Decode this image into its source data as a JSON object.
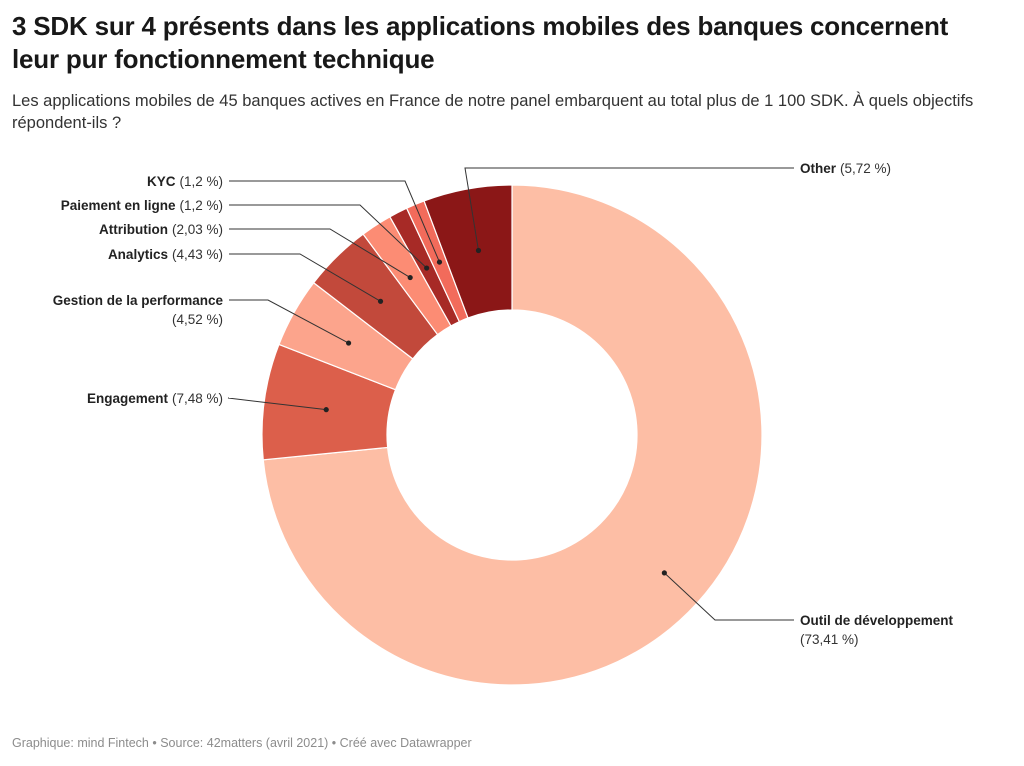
{
  "header": {
    "title": "3 SDK sur 4 présents dans les applications mobiles des banques concernent leur pur fonctionnement technique",
    "subtitle": "Les applications mobiles de 45 banques actives en France de notre panel embarquent au total plus de 1 100 SDK. À quels objectifs répondent-ils ?"
  },
  "footer": {
    "credit": "Graphique: mind Fintech • Source: 42matters (avril 2021) • Créé avec Datawrapper"
  },
  "chart_data": {
    "type": "pie",
    "variant": "donut",
    "unit": "%",
    "slices": [
      {
        "name": "Outil de développement",
        "value": 73.41,
        "value_label": "(73,41 %)",
        "color": "#fdbea5"
      },
      {
        "name": "Engagement",
        "value": 7.48,
        "value_label": "(7,48 %)",
        "color": "#dc5f4b"
      },
      {
        "name": "Gestion de la performance",
        "value": 4.52,
        "value_label": "(4,52 %)",
        "color": "#fca48c"
      },
      {
        "name": "Analytics",
        "value": 4.43,
        "value_label": "(4,43 %)",
        "color": "#c2493b"
      },
      {
        "name": "Attribution",
        "value": 2.03,
        "value_label": "(2,03 %)",
        "color": "#fc8c74"
      },
      {
        "name": "Paiement en ligne",
        "value": 1.2,
        "value_label": "(1,2 %)",
        "color": "#a72a26"
      },
      {
        "name": "KYC",
        "value": 1.2,
        "value_label": "(1,2 %)",
        "color": "#f26b5b"
      },
      {
        "name": "Other",
        "value": 5.72,
        "value_label": "(5,72 %)",
        "color": "#8b1717"
      }
    ]
  }
}
